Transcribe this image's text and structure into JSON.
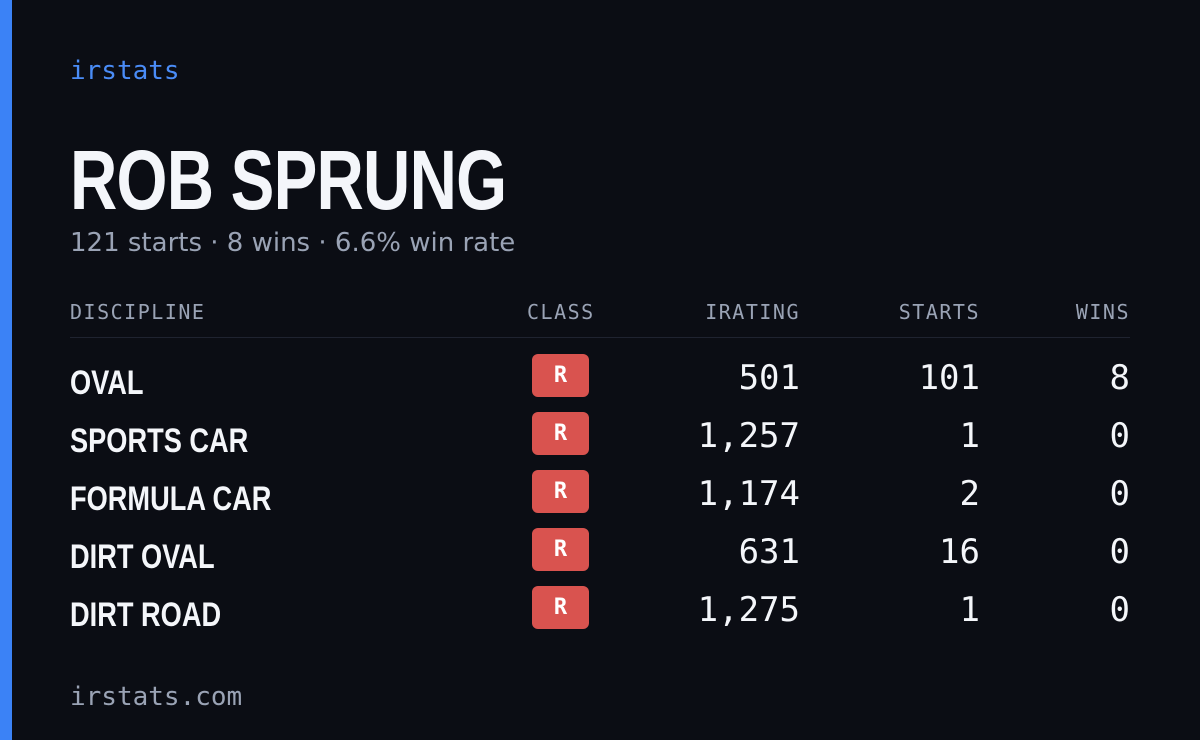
{
  "brand": "irstats",
  "profile": {
    "name": "ROB SPRUNG",
    "summary": "121 starts · 8 wins · 6.6% win rate"
  },
  "table": {
    "headers": [
      "DISCIPLINE",
      "CLASS",
      "IRATING",
      "STARTS",
      "WINS"
    ],
    "rows": [
      [
        "OVAL",
        "R",
        "501",
        "101",
        "8"
      ],
      [
        "SPORTS CAR",
        "R",
        "1,257",
        "1",
        "0"
      ],
      [
        "FORMULA CAR",
        "R",
        "1,174",
        "2",
        "0"
      ],
      [
        "DIRT OVAL",
        "R",
        "631",
        "16",
        "0"
      ],
      [
        "DIRT ROAD",
        "R",
        "1,275",
        "1",
        "0"
      ]
    ]
  },
  "footer": "irstats.com"
}
